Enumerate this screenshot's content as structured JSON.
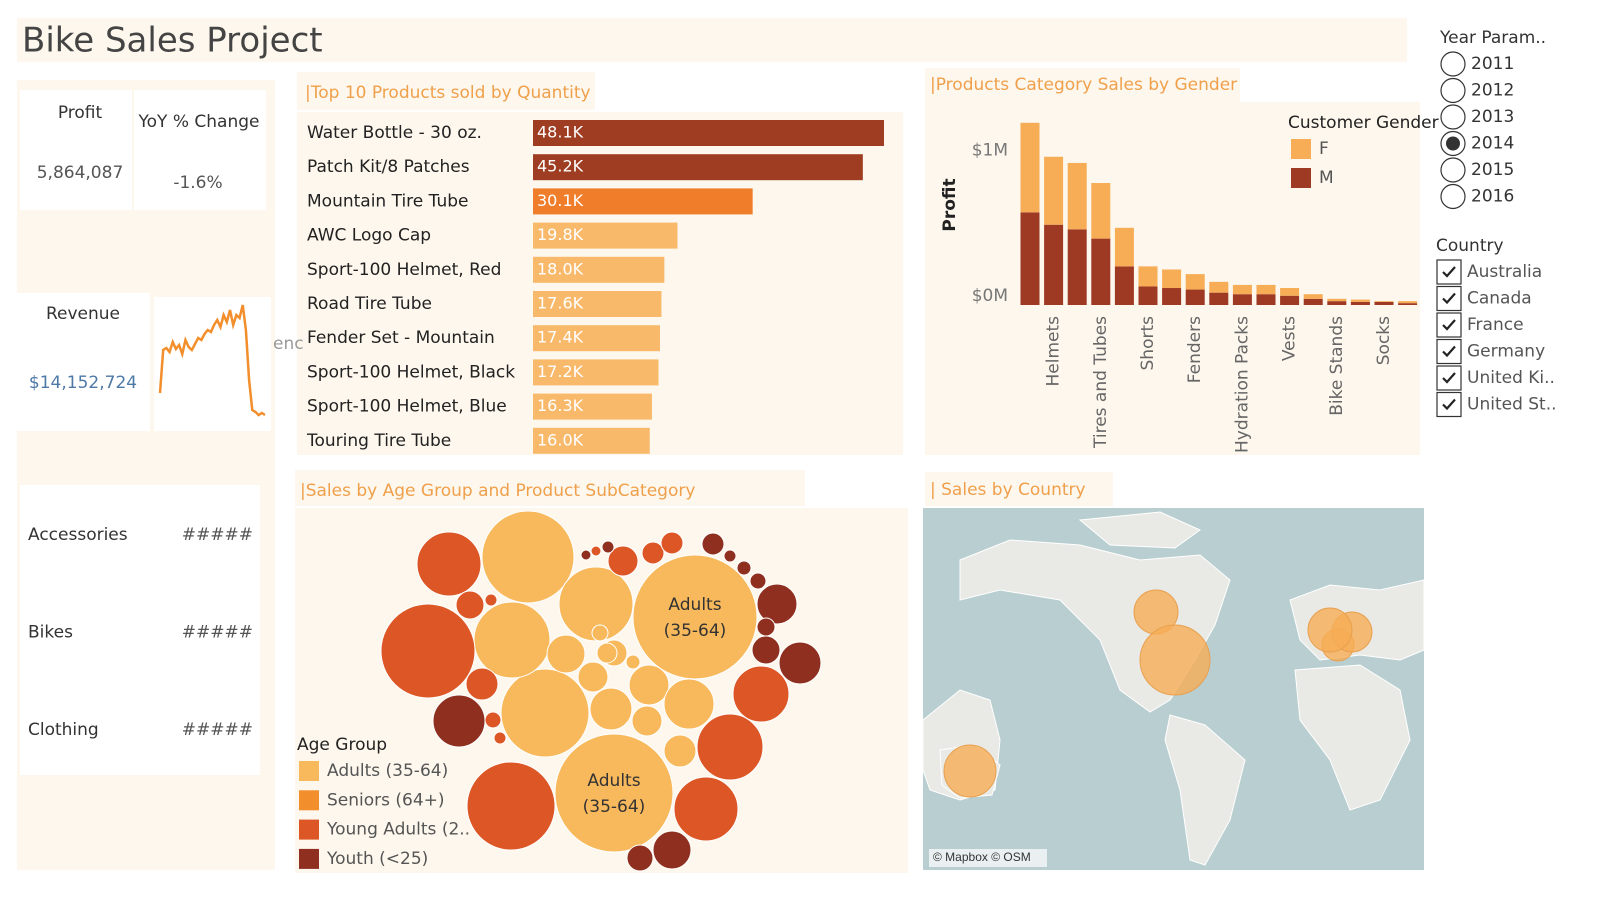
{
  "header": {
    "title": "Bike Sales Project"
  },
  "kpis": {
    "profit": {
      "label": "Profit",
      "value": "5,864,087"
    },
    "yoy": {
      "label": "YoY % Change",
      "value": "-1.6%"
    },
    "revenue": {
      "label": "Revenue",
      "value": "$14,152,724",
      "clipped_text": "enc"
    }
  },
  "categories_card": {
    "rows": [
      {
        "name": "Accessories",
        "value": "#####"
      },
      {
        "name": "Bikes",
        "value": "#####"
      },
      {
        "name": "Clothing",
        "value": "#####"
      }
    ]
  },
  "filters": {
    "year": {
      "title": "Year Param..",
      "options": [
        "2011",
        "2012",
        "2013",
        "2014",
        "2015",
        "2016"
      ],
      "selected": 3
    },
    "country": {
      "title": "Country",
      "options": [
        "Australia",
        "Canada",
        "France",
        "Germany",
        "United Ki..",
        "United St.."
      ],
      "checked": [
        true,
        true,
        true,
        true,
        true,
        true
      ]
    }
  },
  "chart_data": [
    {
      "type": "line",
      "color": "#f28e2b",
      "values": [
        27,
        70,
        72,
        68,
        78,
        71,
        75,
        66,
        80,
        73,
        70,
        76,
        82,
        80,
        86,
        90,
        88,
        95,
        100,
        93,
        105,
        98,
        110,
        95,
        105,
        102,
        115,
        90,
        40,
        10,
        8,
        5,
        7,
        5
      ]
    },
    {
      "type": "bar",
      "orientation": "horizontal",
      "title": "|Top 10 Products sold by Quantity",
      "categories": [
        "Water Bottle - 30 oz.",
        "Patch Kit/8 Patches",
        "Mountain Tire Tube",
        "AWC Logo Cap",
        "Sport-100 Helmet, Red",
        "Road Tire Tube",
        "Fender Set - Mountain",
        "Sport-100 Helmet, Black",
        "Sport-100 Helmet, Blue",
        "Touring Tire Tube"
      ],
      "values": [
        48100,
        45200,
        30100,
        19800,
        18000,
        17600,
        17400,
        17200,
        16300,
        16000
      ],
      "value_labels": [
        "48.1K",
        "45.2K",
        "30.1K",
        "19.8K",
        "18.0K",
        "17.6K",
        "17.4K",
        "17.2K",
        "16.3K",
        "16.0K"
      ],
      "colors": [
        "#9e3d22",
        "#9e3d22",
        "#f07d2a",
        "#f9b96b",
        "#f9b96b",
        "#f9b96b",
        "#f9b96b",
        "#f9b96b",
        "#f9b96b",
        "#f9b96b"
      ]
    },
    {
      "type": "stacked_bar",
      "title": "|Products Category Sales by Gender",
      "y_label": "Profit",
      "legend_title": "Customer Gender",
      "categories": [
        null,
        "Helmets",
        null,
        "Tires and Tubes",
        null,
        "Shorts",
        null,
        "Fenders",
        null,
        "Hydration Packs",
        null,
        "Vests",
        null,
        "Bike Stands",
        null,
        "Socks",
        null
      ],
      "series": [
        {
          "name": "F",
          "color": "#f6ad55",
          "values": [
            580000,
            440000,
            430000,
            360000,
            250000,
            130000,
            120000,
            100000,
            70000,
            60000,
            60000,
            50000,
            30000,
            15000,
            15000,
            5000,
            13000
          ]
        },
        {
          "name": "M",
          "color": "#9e3a24",
          "values": [
            600000,
            520000,
            490000,
            430000,
            250000,
            120000,
            110000,
            100000,
            80000,
            70000,
            70000,
            60000,
            40000,
            25000,
            20000,
            20000,
            12000
          ]
        }
      ],
      "ylim": [
        0,
        1250000
      ],
      "yticks": [
        {
          "value": 0,
          "label": "$0M"
        },
        {
          "value": 1000000,
          "label": "$1M"
        }
      ]
    },
    {
      "type": "bubble",
      "title": "|Sales by Age Group and Product SubCategory",
      "legend_title": "Age Group",
      "groups": [
        {
          "name": "Adults (35-64)",
          "color": "#f8b95c"
        },
        {
          "name": "Seniors (64+)",
          "color": "#f28e2b"
        },
        {
          "name": "Young Adults (2..",
          "color": "#dc5626"
        },
        {
          "name": "Youth (<25)",
          "color": "#8e2f1f"
        }
      ],
      "bubbles": [
        {
          "group": 0,
          "size": 3844,
          "label_lines": [
            "Adults",
            "(35-64)"
          ]
        },
        {
          "group": 0,
          "size": 3481,
          "label_lines": [
            "Adults",
            "(35-64)"
          ]
        },
        {
          "group": 0,
          "size": 2116
        },
        {
          "group": 0,
          "size": 1936
        },
        {
          "group": 0,
          "size": 1444
        },
        {
          "group": 0,
          "size": 1369
        },
        {
          "group": 2,
          "size": 2209
        },
        {
          "group": 2,
          "size": 1936
        },
        {
          "group": 2,
          "size": 1024
        },
        {
          "group": 2,
          "size": 1089
        },
        {
          "group": 2,
          "size": 1024
        },
        {
          "group": 2,
          "size": 784
        },
        {
          "group": 3,
          "size": 676
        },
        {
          "group": 3,
          "size": 441
        },
        {
          "group": 3,
          "size": 400
        },
        {
          "group": 3,
          "size": 361
        },
        {
          "group": 0,
          "size": 400
        },
        {
          "group": 0,
          "size": 625
        },
        {
          "group": 0,
          "size": 441
        },
        {
          "group": 0,
          "size": 361
        },
        {
          "group": 0,
          "size": 225
        },
        {
          "group": 0,
          "size": 256
        },
        {
          "group": 0,
          "size": 225
        },
        {
          "group": 0,
          "size": 169
        },
        {
          "group": 2,
          "size": 225
        },
        {
          "group": 2,
          "size": 196
        },
        {
          "group": 2,
          "size": 256
        },
        {
          "group": 3,
          "size": 169
        },
        {
          "group": 2,
          "size": 121
        },
        {
          "group": 3,
          "size": 121
        },
        {
          "group": 3,
          "size": 196
        },
        {
          "group": 2,
          "size": 64
        },
        {
          "group": 2,
          "size": 36
        },
        {
          "group": 3,
          "size": 36
        },
        {
          "group": 2,
          "size": 25
        },
        {
          "group": 3,
          "size": 25
        },
        {
          "group": 2,
          "size": 121
        },
        {
          "group": 3,
          "size": 36
        },
        {
          "group": 3,
          "size": 49
        },
        {
          "group": 3,
          "size": 64
        },
        {
          "group": 3,
          "size": 81
        },
        {
          "group": 2,
          "size": 36
        },
        {
          "group": 0,
          "size": 49
        },
        {
          "group": 0,
          "size": 100
        },
        {
          "group": 0,
          "size": 64
        }
      ]
    },
    {
      "type": "map",
      "title": "| Sales by Country",
      "color": "#f6ad55",
      "values": [
        676,
        484,
        256,
        400,
        484,
        1225
      ],
      "attribution": "© Mapbox © OSM"
    }
  ]
}
